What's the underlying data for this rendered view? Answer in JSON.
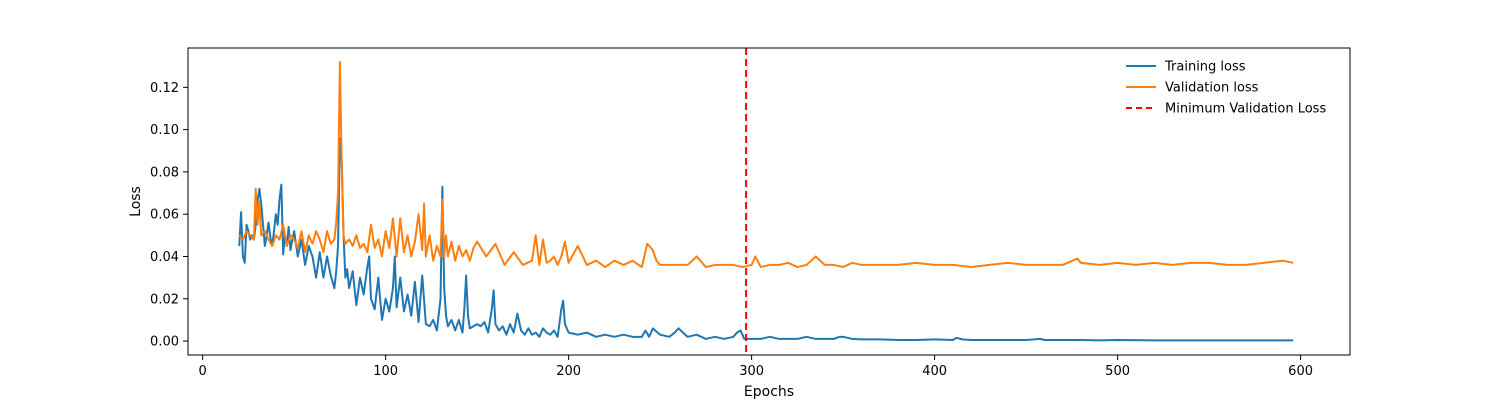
{
  "chart_data": {
    "type": "line",
    "title": "",
    "xlabel": "Epochs",
    "ylabel": "Loss",
    "xlim": [
      -8,
      627
    ],
    "ylim": [
      -0.0066,
      0.1386
    ],
    "xticks": [
      0,
      100,
      200,
      300,
      400,
      500,
      600
    ],
    "xtick_labels": [
      "0",
      "100",
      "200",
      "300",
      "400",
      "500",
      "600"
    ],
    "yticks": [
      0.0,
      0.02,
      0.04,
      0.06,
      0.08,
      0.1,
      0.12
    ],
    "ytick_labels": [
      "0.00",
      "0.02",
      "0.04",
      "0.06",
      "0.08",
      "0.10",
      "0.12"
    ],
    "grid": false,
    "legend_position": "top-right",
    "series": [
      {
        "name": "Training loss",
        "color": "#1f77b4",
        "style": "solid",
        "x": [
          20,
          21,
          22,
          23,
          24,
          25,
          26,
          27,
          28,
          29,
          30,
          31,
          32,
          33,
          34,
          35,
          36,
          37,
          38,
          39,
          40,
          41,
          42,
          43,
          44,
          45,
          46,
          47,
          48,
          49,
          50,
          52,
          54,
          56,
          58,
          60,
          62,
          64,
          66,
          68,
          70,
          72,
          73,
          74,
          75,
          76,
          77,
          78,
          79,
          80,
          82,
          84,
          86,
          88,
          90,
          91,
          92,
          94,
          96,
          98,
          100,
          102,
          104,
          105,
          106,
          108,
          110,
          112,
          114,
          116,
          118,
          120,
          122,
          124,
          126,
          128,
          130,
          131,
          132,
          133,
          134,
          136,
          138,
          140,
          142,
          143,
          144,
          145,
          146,
          148,
          150,
          152,
          154,
          156,
          158,
          159,
          160,
          162,
          164,
          166,
          168,
          170,
          172,
          174,
          176,
          178,
          180,
          182,
          184,
          186,
          188,
          190,
          192,
          194,
          196,
          197,
          198,
          200,
          205,
          210,
          215,
          220,
          225,
          230,
          235,
          240,
          242,
          244,
          246,
          250,
          255,
          258,
          260,
          265,
          270,
          275,
          280,
          285,
          290,
          292,
          294,
          296,
          300,
          305,
          310,
          315,
          320,
          325,
          330,
          335,
          340,
          345,
          348,
          350,
          355,
          360,
          370,
          380,
          390,
          400,
          410,
          412,
          415,
          420,
          430,
          440,
          450,
          458,
          460,
          470,
          480,
          490,
          500,
          520,
          540,
          560,
          580,
          596
        ],
        "y": [
          0.045,
          0.061,
          0.04,
          0.037,
          0.055,
          0.052,
          0.048,
          0.05,
          0.048,
          0.055,
          0.066,
          0.072,
          0.065,
          0.055,
          0.045,
          0.05,
          0.056,
          0.049,
          0.045,
          0.052,
          0.06,
          0.055,
          0.067,
          0.074,
          0.041,
          0.05,
          0.045,
          0.054,
          0.043,
          0.048,
          0.052,
          0.04,
          0.048,
          0.036,
          0.045,
          0.04,
          0.03,
          0.042,
          0.03,
          0.04,
          0.031,
          0.025,
          0.033,
          0.045,
          0.096,
          0.085,
          0.05,
          0.03,
          0.034,
          0.025,
          0.033,
          0.017,
          0.03,
          0.022,
          0.035,
          0.04,
          0.02,
          0.015,
          0.03,
          0.01,
          0.02,
          0.014,
          0.025,
          0.04,
          0.016,
          0.03,
          0.014,
          0.022,
          0.012,
          0.028,
          0.009,
          0.031,
          0.008,
          0.007,
          0.01,
          0.005,
          0.02,
          0.073,
          0.025,
          0.012,
          0.007,
          0.01,
          0.005,
          0.01,
          0.004,
          0.015,
          0.031,
          0.012,
          0.006,
          0.007,
          0.008,
          0.007,
          0.009,
          0.004,
          0.015,
          0.024,
          0.008,
          0.005,
          0.007,
          0.003,
          0.008,
          0.004,
          0.013,
          0.005,
          0.003,
          0.006,
          0.003,
          0.004,
          0.002,
          0.006,
          0.004,
          0.003,
          0.005,
          0.002,
          0.015,
          0.019,
          0.008,
          0.004,
          0.003,
          0.004,
          0.002,
          0.003,
          0.002,
          0.003,
          0.002,
          0.002,
          0.005,
          0.002,
          0.006,
          0.003,
          0.002,
          0.004,
          0.006,
          0.002,
          0.003,
          0.001,
          0.002,
          0.001,
          0.002,
          0.004,
          0.005,
          0.001,
          0.001,
          0.001,
          0.002,
          0.001,
          0.001,
          0.001,
          0.002,
          0.001,
          0.001,
          0.001,
          0.002,
          0.002,
          0.001,
          0.0008,
          0.0008,
          0.0005,
          0.0005,
          0.0008,
          0.0005,
          0.0015,
          0.0008,
          0.0005,
          0.0005,
          0.0005,
          0.0005,
          0.001,
          0.0005,
          0.0005,
          0.0005,
          0.0003,
          0.0005,
          0.0003,
          0.0003,
          0.0003,
          0.0003,
          0.0003
        ]
      },
      {
        "name": "Validation loss",
        "color": "#ff7f0e",
        "style": "solid",
        "x": [
          20,
          22,
          24,
          26,
          28,
          29,
          30,
          31,
          32,
          34,
          36,
          38,
          40,
          42,
          44,
          46,
          48,
          50,
          52,
          54,
          56,
          58,
          60,
          62,
          64,
          66,
          68,
          70,
          72,
          73,
          74,
          75,
          76,
          77,
          78,
          80,
          82,
          84,
          86,
          88,
          90,
          92,
          94,
          96,
          98,
          100,
          102,
          104,
          106,
          108,
          110,
          112,
          114,
          116,
          118,
          120,
          121,
          122,
          124,
          126,
          128,
          130,
          131,
          132,
          133,
          134,
          136,
          138,
          140,
          142,
          144,
          146,
          148,
          150,
          155,
          160,
          165,
          170,
          175,
          180,
          182,
          184,
          186,
          188,
          190,
          192,
          194,
          196,
          198,
          200,
          205,
          210,
          215,
          220,
          225,
          230,
          235,
          240,
          243,
          246,
          248,
          250,
          255,
          260,
          265,
          270,
          275,
          280,
          285,
          290,
          295,
          300,
          302,
          305,
          310,
          315,
          320,
          325,
          330,
          335,
          340,
          345,
          350,
          355,
          360,
          370,
          380,
          390,
          400,
          410,
          420,
          430,
          440,
          450,
          460,
          470,
          478,
          480,
          490,
          500,
          510,
          520,
          530,
          540,
          550,
          560,
          570,
          580,
          590,
          596
        ],
        "y": [
          0.05,
          0.048,
          0.052,
          0.05,
          0.048,
          0.072,
          0.055,
          0.066,
          0.05,
          0.052,
          0.048,
          0.045,
          0.05,
          0.048,
          0.055,
          0.045,
          0.05,
          0.048,
          0.044,
          0.052,
          0.042,
          0.05,
          0.046,
          0.052,
          0.048,
          0.042,
          0.052,
          0.046,
          0.048,
          0.056,
          0.07,
          0.132,
          0.085,
          0.05,
          0.046,
          0.048,
          0.045,
          0.05,
          0.044,
          0.046,
          0.042,
          0.055,
          0.044,
          0.048,
          0.04,
          0.052,
          0.044,
          0.058,
          0.04,
          0.058,
          0.042,
          0.05,
          0.04,
          0.047,
          0.06,
          0.043,
          0.065,
          0.04,
          0.05,
          0.038,
          0.045,
          0.04,
          0.067,
          0.04,
          0.05,
          0.04,
          0.047,
          0.038,
          0.045,
          0.04,
          0.043,
          0.038,
          0.044,
          0.047,
          0.04,
          0.046,
          0.036,
          0.042,
          0.036,
          0.038,
          0.05,
          0.036,
          0.048,
          0.037,
          0.038,
          0.04,
          0.036,
          0.04,
          0.047,
          0.037,
          0.045,
          0.036,
          0.038,
          0.035,
          0.038,
          0.036,
          0.038,
          0.035,
          0.046,
          0.043,
          0.038,
          0.036,
          0.036,
          0.036,
          0.036,
          0.04,
          0.035,
          0.036,
          0.036,
          0.036,
          0.035,
          0.036,
          0.04,
          0.035,
          0.036,
          0.036,
          0.037,
          0.035,
          0.036,
          0.04,
          0.036,
          0.036,
          0.035,
          0.037,
          0.036,
          0.036,
          0.036,
          0.037,
          0.036,
          0.036,
          0.035,
          0.036,
          0.037,
          0.036,
          0.036,
          0.036,
          0.039,
          0.037,
          0.036,
          0.037,
          0.036,
          0.037,
          0.036,
          0.037,
          0.037,
          0.036,
          0.036,
          0.037,
          0.038,
          0.037
        ]
      },
      {
        "name": "Minimum Validation Loss",
        "color": "#ff0000",
        "style": "dashed",
        "orientation": "vertical",
        "x_value": 297
      }
    ]
  }
}
